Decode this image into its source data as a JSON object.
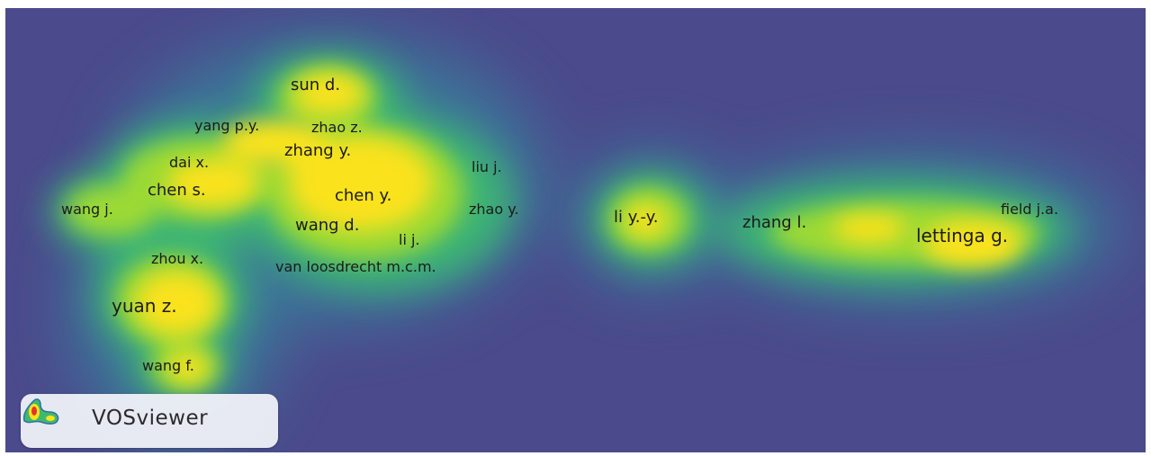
{
  "map": {
    "colors": {
      "background": "#4b4a8c",
      "ramp": [
        "#4b4a8c",
        "#3b6f99",
        "#2a9a8d",
        "#41b86c",
        "#9fdb2d",
        "#fae21c"
      ]
    },
    "nodes": [
      {
        "id": "sun-d",
        "label": "sun d."
      },
      {
        "id": "yang-py",
        "label": "yang p.y."
      },
      {
        "id": "zhao-z",
        "label": "zhao z."
      },
      {
        "id": "zhang-y",
        "label": "zhang y."
      },
      {
        "id": "dai-x",
        "label": "dai x."
      },
      {
        "id": "liu-j",
        "label": "liu j."
      },
      {
        "id": "chen-s",
        "label": "chen s."
      },
      {
        "id": "chen-y",
        "label": "chen y."
      },
      {
        "id": "wang-j",
        "label": "wang j."
      },
      {
        "id": "zhao-y",
        "label": "zhao y."
      },
      {
        "id": "wang-d",
        "label": "wang d."
      },
      {
        "id": "li-j",
        "label": "li j."
      },
      {
        "id": "zhou-x",
        "label": "zhou x."
      },
      {
        "id": "van-loosdrecht",
        "label": "van loosdrecht m.c.m."
      },
      {
        "id": "yuan-z",
        "label": "yuan z."
      },
      {
        "id": "wang-f",
        "label": "wang f."
      },
      {
        "id": "li-yy",
        "label": "li y.-y."
      },
      {
        "id": "zhang-l",
        "label": "zhang l."
      },
      {
        "id": "field-ja",
        "label": "field j.a."
      },
      {
        "id": "lettinga-g",
        "label": "lettinga g."
      }
    ]
  },
  "badge": {
    "brand": "VOSviewer",
    "logo_icon": "vosviewer-logo-icon"
  }
}
